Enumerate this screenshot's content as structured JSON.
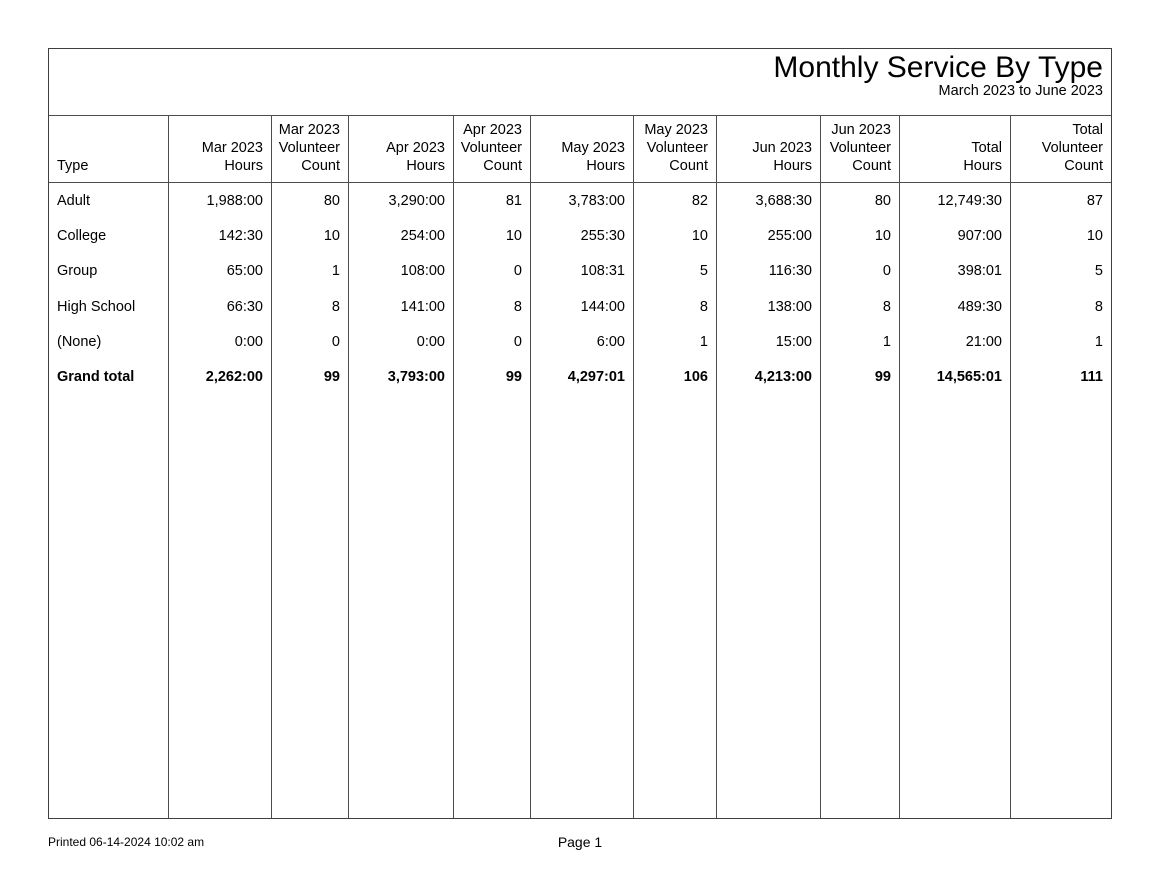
{
  "report": {
    "title": "Monthly Service By Type",
    "subtitle": "March 2023 to June 2023"
  },
  "table": {
    "columns": [
      "Type",
      "Mar 2023\nHours",
      "Mar 2023\nVolunteer\nCount",
      "Apr 2023\nHours",
      "Apr 2023\nVolunteer\nCount",
      "May 2023\nHours",
      "May 2023\nVolunteer\nCount",
      "Jun 2023\nHours",
      "Jun 2023\nVolunteer\nCount",
      "Total\nHours",
      "Total\nVolunteer\nCount"
    ],
    "rows": [
      {
        "bold": false,
        "cells": [
          "Adult",
          "1,988:00",
          "80",
          "3,290:00",
          "81",
          "3,783:00",
          "82",
          "3,688:30",
          "80",
          "12,749:30",
          "87"
        ]
      },
      {
        "bold": false,
        "cells": [
          "College",
          "142:30",
          "10",
          "254:00",
          "10",
          "255:30",
          "10",
          "255:00",
          "10",
          "907:00",
          "10"
        ]
      },
      {
        "bold": false,
        "cells": [
          "Group",
          "65:00",
          "1",
          "108:00",
          "0",
          "108:31",
          "5",
          "116:30",
          "0",
          "398:01",
          "5"
        ]
      },
      {
        "bold": false,
        "cells": [
          "High School",
          "66:30",
          "8",
          "141:00",
          "8",
          "144:00",
          "8",
          "138:00",
          "8",
          "489:30",
          "8"
        ]
      },
      {
        "bold": false,
        "cells": [
          "(None)",
          "0:00",
          "0",
          "0:00",
          "0",
          "6:00",
          "1",
          "15:00",
          "1",
          "21:00",
          "1"
        ]
      },
      {
        "bold": true,
        "cells": [
          "Grand total",
          "2,262:00",
          "99",
          "3,793:00",
          "99",
          "4,297:01",
          "106",
          "4,213:00",
          "99",
          "14,565:01",
          "111"
        ]
      }
    ]
  },
  "footer": {
    "printed": "Printed 06-14-2024 10:02 am",
    "page": "Page 1"
  }
}
